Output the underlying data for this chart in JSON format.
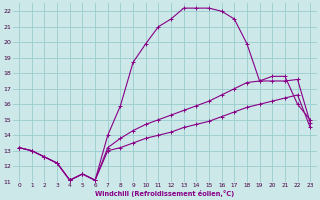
{
  "xlabel": "Windchill (Refroidissement éolien,°C)",
  "xlim": [
    -0.5,
    23.5
  ],
  "ylim": [
    11,
    22.5
  ],
  "xticks": [
    0,
    1,
    2,
    3,
    4,
    5,
    6,
    7,
    8,
    9,
    10,
    11,
    12,
    13,
    14,
    15,
    16,
    17,
    18,
    19,
    20,
    21,
    22,
    23
  ],
  "yticks": [
    11,
    12,
    13,
    14,
    15,
    16,
    17,
    18,
    19,
    20,
    21,
    22
  ],
  "bg_color": "#cce8e8",
  "grid_color": "#99cccc",
  "line_color": "#880088",
  "line1_x": [
    0,
    1,
    2,
    3,
    4,
    5,
    6,
    7,
    8,
    9,
    10,
    11,
    12,
    13,
    14,
    15,
    16,
    17,
    18,
    19,
    20,
    21,
    22,
    23
  ],
  "line1_y": [
    13.2,
    13.0,
    12.6,
    12.2,
    11.1,
    11.5,
    11.1,
    14.0,
    15.9,
    18.7,
    19.9,
    21.0,
    21.5,
    22.2,
    22.2,
    22.2,
    22.0,
    21.5,
    19.9,
    17.5,
    17.8,
    17.8,
    16.0,
    15.0
  ],
  "line2_x": [
    0,
    1,
    2,
    3,
    4,
    5,
    6,
    7,
    8,
    9,
    10,
    11,
    12,
    13,
    14,
    15,
    16,
    17,
    18,
    19,
    20,
    21,
    22,
    23
  ],
  "line2_y": [
    13.2,
    13.0,
    12.6,
    12.2,
    11.1,
    11.5,
    11.1,
    13.2,
    13.8,
    14.3,
    14.7,
    15.0,
    15.3,
    15.6,
    15.9,
    16.2,
    16.6,
    17.0,
    17.4,
    17.5,
    17.5,
    17.5,
    17.6,
    14.8
  ],
  "line3_x": [
    0,
    1,
    2,
    3,
    4,
    5,
    6,
    7,
    8,
    9,
    10,
    11,
    12,
    13,
    14,
    15,
    16,
    17,
    18,
    19,
    20,
    21,
    22,
    23
  ],
  "line3_y": [
    13.2,
    13.0,
    12.6,
    12.2,
    11.1,
    11.5,
    11.1,
    13.0,
    13.2,
    13.5,
    13.8,
    14.0,
    14.2,
    14.5,
    14.7,
    14.9,
    15.2,
    15.5,
    15.8,
    16.0,
    16.2,
    16.4,
    16.6,
    14.5
  ]
}
